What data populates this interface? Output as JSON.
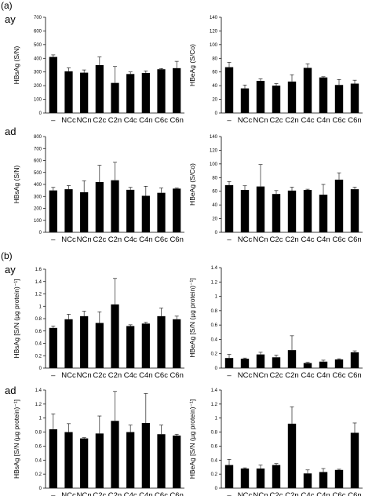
{
  "figure": {
    "panel_a_label": "(a)",
    "panel_b_label": "(b)",
    "row_labels": [
      "ay",
      "ad",
      "ay",
      "ad"
    ]
  },
  "categories": [
    "–",
    "NCc",
    "NCn",
    "C2c",
    "C2n",
    "C4c",
    "C4n",
    "C6c",
    "C6n"
  ],
  "chart_data": [
    {
      "type": "bar",
      "panel": "(a)",
      "row": "ay",
      "ylabel": "HBsAg (S/N)",
      "ylim": [
        0,
        700
      ],
      "yticks": [
        "0",
        "100",
        "200",
        "300",
        "400",
        "500",
        "600",
        "700"
      ],
      "values": [
        410,
        305,
        295,
        350,
        220,
        285,
        293,
        320,
        328
      ],
      "errors": [
        15,
        25,
        20,
        60,
        120,
        15,
        15,
        5,
        50
      ]
    },
    {
      "type": "bar",
      "panel": "(a)",
      "row": "ay",
      "ylabel": "HBeAg (S/Co)",
      "ylim": [
        0,
        140
      ],
      "yticks": [
        "0",
        "20",
        "40",
        "60",
        "80",
        "100",
        "120",
        "140"
      ],
      "values": [
        67,
        36,
        47,
        40,
        46,
        66,
        52,
        41,
        43
      ],
      "errors": [
        7,
        5,
        3,
        3,
        10,
        6,
        1,
        8,
        5
      ]
    },
    {
      "type": "bar",
      "panel": "(a)",
      "row": "ad",
      "ylabel": "HBsAg (S/N)",
      "ylim": [
        0,
        800
      ],
      "yticks": [
        "0",
        "100",
        "200",
        "300",
        "400",
        "500",
        "600",
        "700",
        "800"
      ],
      "values": [
        350,
        360,
        335,
        420,
        435,
        355,
        305,
        330,
        365
      ],
      "errors": [
        25,
        30,
        95,
        140,
        150,
        20,
        80,
        40,
        5
      ]
    },
    {
      "type": "bar",
      "panel": "(a)",
      "row": "ad",
      "ylabel": "HBeAg (S/Co)",
      "ylim": [
        0,
        140
      ],
      "yticks": [
        "0",
        "20",
        "40",
        "60",
        "80",
        "100",
        "120",
        "140"
      ],
      "values": [
        69,
        62,
        67,
        56,
        61,
        62,
        55,
        77,
        63
      ],
      "errors": [
        5,
        6,
        32,
        5,
        5,
        1,
        15,
        10,
        3
      ]
    },
    {
      "type": "bar",
      "panel": "(b)",
      "row": "ay",
      "ylabel": "HBsAg [S/N (µg protein)⁻¹]",
      "ylim": [
        0,
        1.6
      ],
      "yticks": [
        "0",
        "0.2",
        "0.4",
        "0.6",
        "0.8",
        "1",
        "1.2",
        "1.4",
        "1.6"
      ],
      "values": [
        0.65,
        0.79,
        0.84,
        0.73,
        1.03,
        0.68,
        0.72,
        0.84,
        0.79
      ],
      "errors": [
        0.03,
        0.08,
        0.08,
        0.18,
        0.42,
        0.02,
        0.02,
        0.13,
        0.05
      ]
    },
    {
      "type": "bar",
      "panel": "(b)",
      "row": "ay",
      "ylabel": "HBeAg [S/N (µg protein)⁻¹]",
      "ylim": [
        0,
        1.4
      ],
      "yticks": [
        "0",
        "0.2",
        "0.4",
        "0.6",
        "0.8",
        "1",
        "1.2",
        "1.4"
      ],
      "values": [
        0.14,
        0.13,
        0.19,
        0.15,
        0.25,
        0.07,
        0.09,
        0.12,
        0.22
      ],
      "errors": [
        0.05,
        0.01,
        0.03,
        0.03,
        0.2,
        0.01,
        0.02,
        0.01,
        0.02
      ]
    },
    {
      "type": "bar",
      "panel": "(b)",
      "row": "ad",
      "ylabel": "HBsAg [S/N (µg protein)⁻¹]",
      "ylim": [
        0,
        1.4
      ],
      "yticks": [
        "0",
        "0.2",
        "0.4",
        "0.6",
        "0.8",
        "1",
        "1.2",
        "1.4"
      ],
      "values": [
        0.84,
        0.8,
        0.71,
        0.78,
        0.96,
        0.8,
        0.93,
        0.77,
        0.75
      ],
      "errors": [
        0.22,
        0.12,
        0.01,
        0.25,
        0.42,
        0.1,
        0.42,
        0.13,
        0.02
      ]
    },
    {
      "type": "bar",
      "panel": "(b)",
      "row": "ad",
      "ylabel": "HBeAg [S/N (µg protein)⁻¹]",
      "ylim": [
        0,
        1.4
      ],
      "yticks": [
        "0",
        "0.2",
        "0.4",
        "0.6",
        "0.8",
        "1",
        "1.2",
        "1.4"
      ],
      "values": [
        0.33,
        0.28,
        0.28,
        0.33,
        0.92,
        0.21,
        0.23,
        0.26,
        0.79
      ],
      "errors": [
        0.08,
        0.01,
        0.05,
        0.02,
        0.24,
        0.05,
        0.05,
        0.01,
        0.14
      ]
    }
  ]
}
